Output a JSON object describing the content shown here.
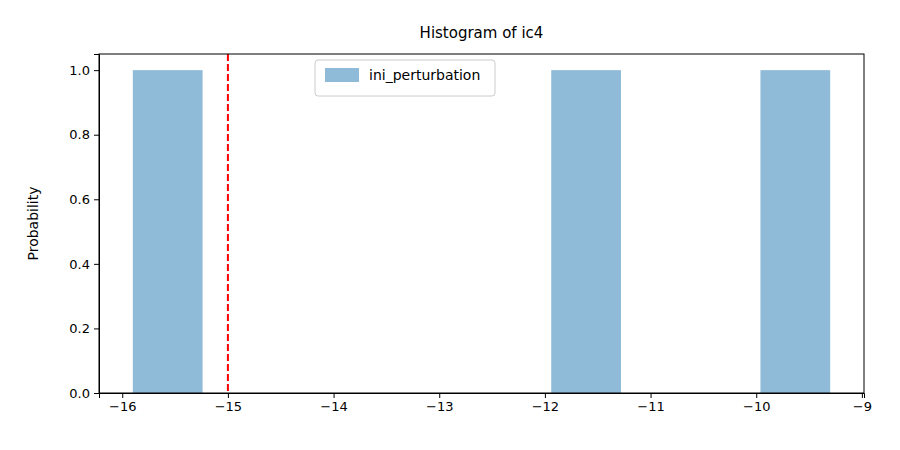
{
  "chart_data": {
    "type": "histogram",
    "title": "Histogram of ic4",
    "y_label": "Probability",
    "bins": [
      -15.9,
      -15.24,
      -14.58,
      -13.92,
      -13.26,
      -12.6,
      -11.94,
      -11.28,
      -10.62,
      -9.96,
      -9.3
    ],
    "series": [
      {
        "name": "ini_perturbation",
        "color": "#1f77b4",
        "values": [
          1.0,
          0,
          0,
          0,
          0,
          0,
          1.0,
          0,
          0,
          1.0
        ]
      }
    ],
    "vline": {
      "x": -15,
      "color": "#ff0000",
      "line_style": "dashed"
    },
    "xlim": [
      -16.22,
      -8.98
    ],
    "xticks": [
      {
        "value": -16,
        "label": "−16"
      },
      {
        "value": -15,
        "label": "−15"
      },
      {
        "value": -14,
        "label": "−14"
      },
      {
        "value": -13,
        "label": "−13"
      },
      {
        "value": -12,
        "label": "−12"
      },
      {
        "value": -11,
        "label": "−11"
      },
      {
        "value": -10,
        "label": "−10"
      },
      {
        "value": -9,
        "label": "−9"
      }
    ],
    "ylim": [
      0,
      1.05
    ],
    "yticks": [
      {
        "value": 0,
        "label": "0.0"
      },
      {
        "value": 0.2,
        "label": "0.2"
      },
      {
        "value": 0.4,
        "label": "0.4"
      },
      {
        "value": 0.6,
        "label": "0.6"
      },
      {
        "value": 0.8,
        "label": "0.8"
      },
      {
        "value": 1.0,
        "label": "1.0"
      }
    ],
    "legend": "upper center"
  }
}
